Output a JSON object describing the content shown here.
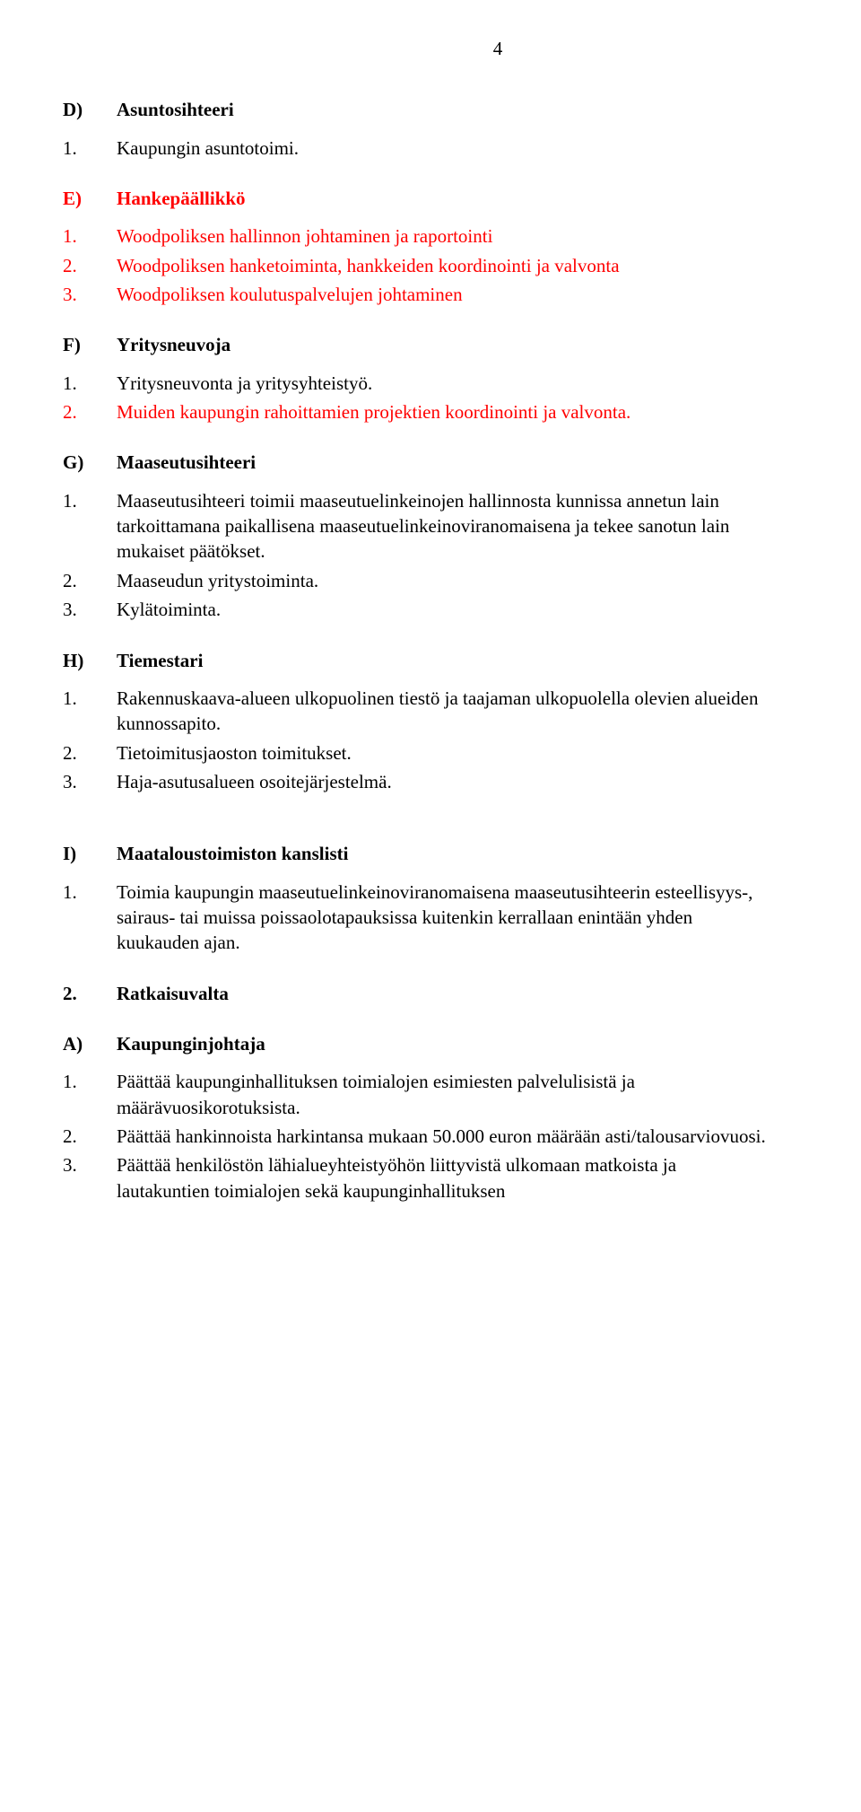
{
  "page_number": "4",
  "colors": {
    "red": "#ff0000",
    "black": "#000000",
    "bg": "#ffffff"
  },
  "font_family": "Times New Roman",
  "font_size_pt": 16,
  "sections": {
    "D": {
      "letter": "D)",
      "title": "Asuntosihteeri",
      "color": "black",
      "items": [
        {
          "num": "1.",
          "text": "Kaupungin asuntotoimi.",
          "color": "black"
        }
      ]
    },
    "E": {
      "letter": "E)",
      "title": "Hankepäällikkö",
      "color": "red",
      "items": [
        {
          "num": "1.",
          "text": "Woodpoliksen hallinnon johtaminen ja raportointi",
          "color": "red"
        },
        {
          "num": "2.",
          "text": "Woodpoliksen hanketoiminta, hankkeiden koordinointi ja valvonta",
          "color": "red"
        },
        {
          "num": "3.",
          "text": "Woodpoliksen koulutuspalvelujen johtaminen",
          "color": "red"
        }
      ]
    },
    "F": {
      "letter": "F)",
      "title": "Yritysneuvoja",
      "color": "black",
      "items": [
        {
          "num": "1.",
          "text": "Yritysneuvonta ja yritysyhteistyö.",
          "color": "black"
        },
        {
          "num": "2.",
          "text": "Muiden kaupungin rahoittamien projektien koordinointi ja valvonta.",
          "color": "red"
        }
      ]
    },
    "G": {
      "letter": "G)",
      "title": "Maaseutusihteeri",
      "color": "black",
      "items": [
        {
          "num": "1.",
          "text": "Maaseutusihteeri toimii maaseutuelinkeinojen hallinnosta kunnissa annetun lain tarkoittamana paikallisena maaseutuelinkeinoviranomaisena ja tekee sanotun lain mukaiset päätökset.",
          "color": "black"
        },
        {
          "num": "2.",
          "text": "Maaseudun yritystoiminta.",
          "color": "black"
        },
        {
          "num": "3.",
          "text": "Kylätoiminta.",
          "color": "black"
        }
      ]
    },
    "H": {
      "letter": "H)",
      "title": "Tiemestari",
      "color": "black",
      "items": [
        {
          "num": "1.",
          "text": "Rakennuskaava-alueen ulkopuolinen tiestö ja taajaman ulkopuolella olevien alueiden kunnossapito.",
          "color": "black"
        },
        {
          "num": "2.",
          "text": "Tietoimitusjaoston toimitukset.",
          "color": "black"
        },
        {
          "num": "3.",
          "text": "Haja-asutusalueen osoitejärjestelmä.",
          "color": "black"
        }
      ]
    },
    "I": {
      "letter": "I)",
      "title": "Maataloustoimiston kanslisti",
      "color": "black",
      "items": [
        {
          "num": "1.",
          "text": "Toimia kaupungin maaseutuelinkeinoviranomaisena maaseutusihteerin esteellisyys-, sairaus- tai muissa poissaolotapauksissa kuitenkin kerrallaan enintään yhden kuukauden ajan.",
          "color": "black"
        }
      ]
    },
    "S2": {
      "letter": "2.",
      "title": "Ratkaisuvalta",
      "color": "black",
      "items": []
    },
    "A": {
      "letter": "A)",
      "title": "Kaupunginjohtaja",
      "color": "black",
      "items": [
        {
          "num": "1.",
          "text": "Päättää kaupunginhallituksen toimialojen esimiesten palvelulisistä ja määrävuosikorotuksista.",
          "color": "black"
        },
        {
          "num": "2.",
          "text": "Päättää hankinnoista harkintansa mukaan 50.000 euron määrään asti/talousarviovuosi.",
          "color": "black"
        },
        {
          "num": "3.",
          "text": "Päättää henkilöstön lähialueyhteistyöhön liittyvistä ulkomaan matkoista ja lautakuntien toimialojen sekä kaupunginhallituksen",
          "color": "black"
        }
      ]
    }
  }
}
